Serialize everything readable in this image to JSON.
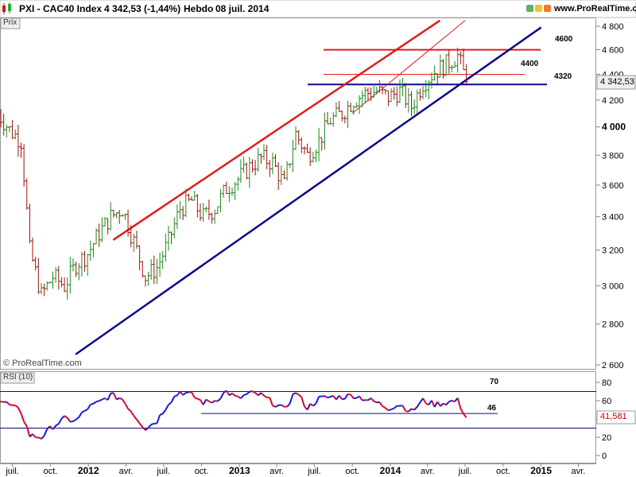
{
  "header": {
    "title": "PXI - CAC40 Index",
    "last_value": "4 342,53 (-1,44%)",
    "period": "Hebdo",
    "date": "08 juil. 2014",
    "site": "www.ProRealTime.com"
  },
  "price_panel": {
    "tab_label": "Prix",
    "watermark": "© ProRealTime.com",
    "last_price_label": "4 342,53",
    "y_ticks": [
      "4 800",
      "4 600",
      "4 400",
      "4 200",
      "4 000",
      "3 800",
      "3 600",
      "3 400",
      "3 200",
      "3 000",
      "2 800",
      "2 600"
    ],
    "annotations": [
      "4600",
      "4400",
      "4320"
    ]
  },
  "rsi_panel": {
    "tab_label": "RSI (10)",
    "last_value_label": "41,581",
    "y_ticks": [
      "80",
      "60",
      "40",
      "20",
      "0"
    ],
    "annotations": [
      "70",
      "46"
    ]
  },
  "x_axis": {
    "ticks": [
      "juil.",
      "oct.",
      "2012",
      "avr.",
      "juil.",
      "oct.",
      "2013",
      "avr.",
      "juil.",
      "oct.",
      "2014",
      "avr.",
      "juil.",
      "oct.",
      "2015",
      "avr."
    ]
  },
  "colors": {
    "price_up": "#1a8a1a",
    "price_down": "#a01010",
    "trend_red": "#e21b1b",
    "trend_blue": "#0a0a8c",
    "rsi_up": "#1a1ad6",
    "rsi_down": "#d40a2a",
    "last_price_bg": "#efefef",
    "rsi_last_bg": "#ffffff"
  },
  "chart_data": [
    {
      "type": "line",
      "title": "PXI - CAC40 Index",
      "x_range": [
        "2011-06",
        "2015-05"
      ],
      "y_scale": "log",
      "ylim": [
        2600,
        4850
      ],
      "series": [
        {
          "style": "weekly-bars",
          "dates": [
            "2011-05-27",
            "2011-06-24",
            "2011-07-22",
            "2011-08-12",
            "2011-09-09",
            "2011-10-07",
            "2011-11-04",
            "2011-12-02",
            "2011-12-30",
            "2012-01-27",
            "2012-02-24",
            "2012-03-23",
            "2012-04-20",
            "2012-05-18",
            "2012-06-15",
            "2012-07-13",
            "2012-08-10",
            "2012-09-07",
            "2012-10-05",
            "2012-11-02",
            "2012-11-30",
            "2012-12-28",
            "2013-01-25",
            "2013-02-22",
            "2013-03-22",
            "2013-04-19",
            "2013-05-17",
            "2013-06-14",
            "2013-07-12",
            "2013-08-09",
            "2013-09-06",
            "2013-10-04",
            "2013-11-01",
            "2013-11-29",
            "2013-12-27",
            "2014-01-24",
            "2014-02-21",
            "2014-03-21",
            "2014-04-18",
            "2014-05-16",
            "2014-06-13",
            "2014-07-04"
          ],
          "values": [
            4100,
            3980,
            3900,
            3200,
            2950,
            3050,
            3000,
            3120,
            3180,
            3300,
            3400,
            3450,
            3250,
            3050,
            3100,
            3250,
            3450,
            3500,
            3400,
            3450,
            3580,
            3640,
            3720,
            3780,
            3750,
            3600,
            3950,
            3800,
            3900,
            4050,
            4100,
            4200,
            4250,
            4270,
            4220,
            4270,
            4150,
            4330,
            4420,
            4480,
            4550,
            4342.53
          ]
        },
        {
          "name": "",
          "style": "trend-red",
          "x": [
            "2012-03",
            "2014-05"
          ],
          "y": [
            3260,
            4850
          ]
        },
        {
          "name": "",
          "style": "trend-red-thin",
          "x": [
            "2013-10",
            "2014-07"
          ],
          "y": [
            4100,
            4850
          ]
        },
        {
          "name": "",
          "style": "trend-blue",
          "x": [
            "2011-12",
            "2015-01"
          ],
          "y": [
            2650,
            4790
          ]
        }
      ],
      "horizontal_levels": [
        {
          "label": "4600",
          "value": 4600
        },
        {
          "label": "4400",
          "value": 4400
        },
        {
          "label": "4320",
          "value": 4320
        }
      ],
      "last_value": 4342.53
    },
    {
      "type": "line",
      "title": "RSI (10)",
      "ylim": [
        0,
        80
      ],
      "series": [
        {
          "dates": [
            "2011-05-27",
            "2011-06-24",
            "2011-07-22",
            "2011-08-12",
            "2011-09-09",
            "2011-10-07",
            "2011-11-04",
            "2011-12-02",
            "2011-12-30",
            "2012-01-27",
            "2012-02-24",
            "2012-03-23",
            "2012-04-20",
            "2012-05-18",
            "2012-06-15",
            "2012-07-13",
            "2012-08-10",
            "2012-09-07",
            "2012-10-05",
            "2012-11-02",
            "2012-11-30",
            "2012-12-28",
            "2013-01-25",
            "2013-02-22",
            "2013-03-22",
            "2013-04-19",
            "2013-05-17",
            "2013-06-14",
            "2013-07-12",
            "2013-08-09",
            "2013-09-06",
            "2013-10-04",
            "2013-11-01",
            "2013-11-29",
            "2013-12-27",
            "2014-01-24",
            "2014-02-21",
            "2014-03-21",
            "2014-04-18",
            "2014-05-16",
            "2014-06-13",
            "2014-07-04"
          ],
          "values": [
            62,
            55,
            48,
            22,
            20,
            32,
            40,
            38,
            52,
            58,
            66,
            62,
            45,
            30,
            38,
            58,
            70,
            66,
            58,
            60,
            70,
            62,
            68,
            66,
            58,
            50,
            70,
            52,
            62,
            64,
            64,
            66,
            62,
            58,
            52,
            56,
            48,
            60,
            56,
            58,
            60,
            41.581
          ]
        }
      ],
      "horizontal_levels": [
        {
          "label": "70",
          "value": 70
        },
        {
          "label": "46",
          "value": 46
        },
        {
          "label": "",
          "value": 30
        }
      ],
      "last_value": 41.581
    }
  ]
}
